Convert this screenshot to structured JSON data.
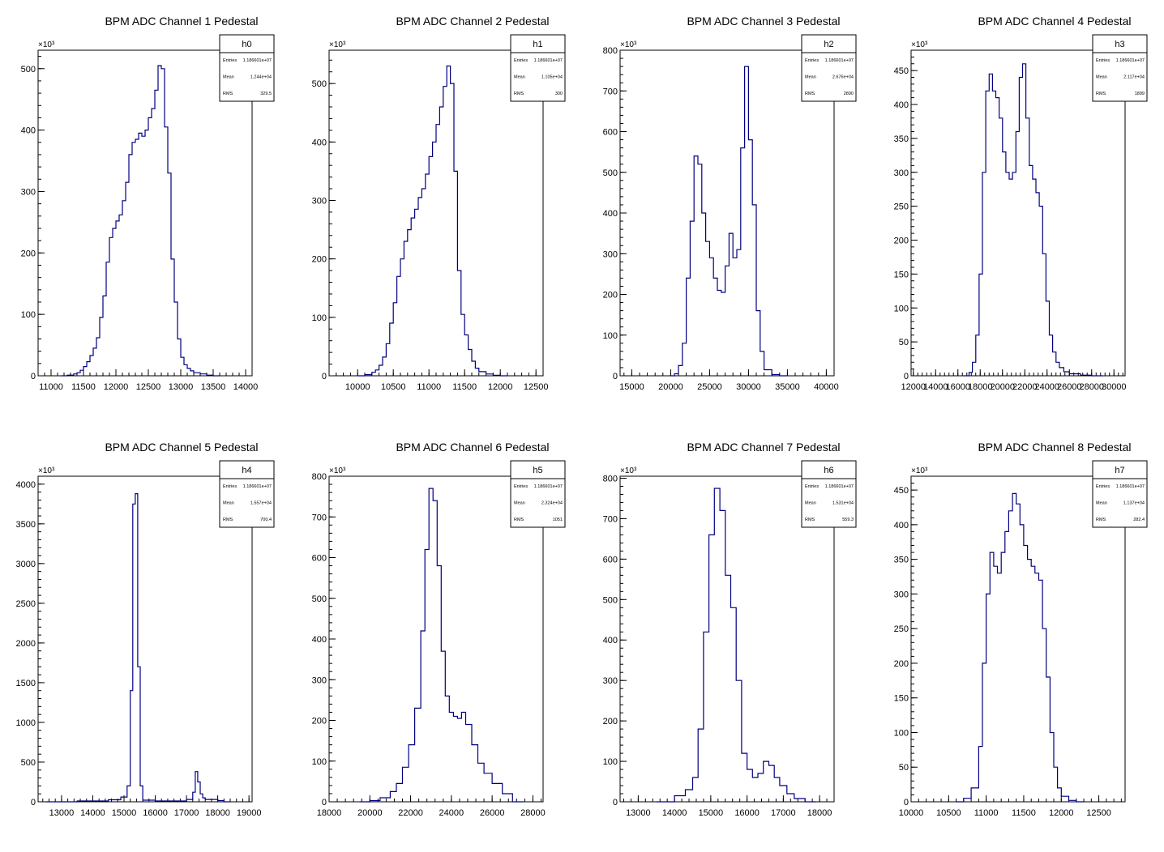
{
  "chart_data": [
    {
      "type": "histogram",
      "title": "BPM ADC Channel 1 Pedestal",
      "exponent_label": "×10³",
      "stats": {
        "name": "h0",
        "entries_label": "Entries",
        "entries": "1.186601e+07",
        "mean_label": "Mean",
        "mean": "1.244e+04",
        "rms_label": "RMS",
        "rms": "329.5"
      },
      "xlim": [
        10800,
        14100
      ],
      "ylim": [
        0,
        530
      ],
      "xticks": [
        11000,
        11500,
        12000,
        12500,
        13000,
        13500,
        14000
      ],
      "xtick_labels": [
        "11000",
        "11500",
        "12000",
        "12500",
        "13000",
        "13500",
        "14000"
      ],
      "yticks": [
        0,
        100,
        200,
        300,
        400,
        500
      ],
      "ytick_labels": [
        "0",
        "100",
        "200",
        "300",
        "400",
        "500"
      ],
      "x": [
        11150,
        11250,
        11350,
        11400,
        11450,
        11500,
        11550,
        11600,
        11650,
        11700,
        11750,
        11800,
        11850,
        11900,
        11950,
        12000,
        12050,
        12100,
        12150,
        12200,
        12250,
        12300,
        12350,
        12400,
        12450,
        12500,
        12550,
        12600,
        12650,
        12700,
        12750,
        12800,
        12850,
        12900,
        12950,
        13000,
        13050,
        13100,
        13150,
        13200,
        13300,
        13400,
        13500
      ],
      "y": [
        0,
        1,
        3,
        5,
        9,
        15,
        23,
        33,
        45,
        62,
        95,
        130,
        185,
        225,
        240,
        252,
        262,
        285,
        315,
        360,
        380,
        385,
        395,
        390,
        400,
        420,
        435,
        465,
        505,
        500,
        405,
        330,
        190,
        120,
        60,
        30,
        18,
        12,
        8,
        5,
        3,
        1,
        0
      ]
    },
    {
      "type": "histogram",
      "title": "BPM ADC Channel 2 Pedestal",
      "exponent_label": "×10³",
      "stats": {
        "name": "h1",
        "entries_label": "Entries",
        "entries": "1.186601e+07",
        "mean_label": "Mean",
        "mean": "1.105e+04",
        "rms_label": "RMS",
        "rms": "300"
      },
      "xlim": [
        9600,
        12600
      ],
      "ylim": [
        0,
        557
      ],
      "xticks": [
        10000,
        10500,
        11000,
        11500,
        12000,
        12500
      ],
      "xtick_labels": [
        "10000",
        "10500",
        "11000",
        "11500",
        "12000",
        "12500"
      ],
      "yticks": [
        0,
        100,
        200,
        300,
        400,
        500
      ],
      "ytick_labels": [
        "0",
        "100",
        "200",
        "300",
        "400",
        "500"
      ],
      "x": [
        10000,
        10100,
        10200,
        10250,
        10300,
        10350,
        10400,
        10450,
        10500,
        10550,
        10600,
        10650,
        10700,
        10750,
        10800,
        10850,
        10900,
        10950,
        11000,
        11050,
        11100,
        11150,
        11200,
        11250,
        11300,
        11350,
        11400,
        11450,
        11500,
        11550,
        11600,
        11650,
        11700,
        11800,
        11900,
        12000
      ],
      "y": [
        0,
        2,
        6,
        10,
        18,
        32,
        55,
        90,
        125,
        170,
        200,
        230,
        250,
        270,
        285,
        305,
        320,
        345,
        375,
        400,
        430,
        460,
        495,
        530,
        500,
        350,
        180,
        105,
        70,
        45,
        25,
        13,
        7,
        3,
        1,
        0
      ]
    },
    {
      "type": "histogram",
      "title": "BPM ADC Channel 3 Pedestal",
      "exponent_label": "×10³",
      "stats": {
        "name": "h2",
        "entries_label": "Entries",
        "entries": "1.186601e+07",
        "mean_label": "Mean",
        "mean": "2.676e+04",
        "rms_label": "RMS",
        "rms": "2890"
      },
      "xlim": [
        13500,
        41000
      ],
      "ylim": [
        0,
        800
      ],
      "xticks": [
        15000,
        20000,
        25000,
        30000,
        35000,
        40000
      ],
      "xtick_labels": [
        "15000",
        "20000",
        "25000",
        "30000",
        "35000",
        "40000"
      ],
      "yticks": [
        0,
        100,
        200,
        300,
        400,
        500,
        600,
        700,
        800
      ],
      "ytick_labels": [
        "0",
        "100",
        "200",
        "300",
        "400",
        "500",
        "600",
        "700",
        "800"
      ],
      "x": [
        20000,
        20500,
        21000,
        21500,
        22000,
        22500,
        23000,
        23500,
        24000,
        24500,
        25000,
        25500,
        26000,
        26500,
        27000,
        27500,
        28000,
        28500,
        29000,
        29500,
        30000,
        30500,
        31000,
        31500,
        32000,
        33000,
        34000
      ],
      "y": [
        0,
        5,
        25,
        80,
        240,
        380,
        540,
        520,
        400,
        330,
        290,
        240,
        210,
        205,
        270,
        350,
        290,
        310,
        560,
        760,
        580,
        420,
        160,
        60,
        15,
        3,
        0
      ]
    },
    {
      "type": "histogram",
      "title": "BPM ADC Channel 4 Pedestal",
      "exponent_label": "×10³",
      "stats": {
        "name": "h3",
        "entries_label": "Entries",
        "entries": "1.186601e+07",
        "mean_label": "Mean",
        "mean": "2.117e+04",
        "rms_label": "RMS",
        "rms": "1899"
      },
      "xlim": [
        11800,
        31000
      ],
      "ylim": [
        0,
        480
      ],
      "xticks": [
        12000,
        14000,
        16000,
        18000,
        20000,
        22000,
        24000,
        26000,
        28000,
        30000
      ],
      "xtick_labels": [
        "12000",
        "14000",
        "16000",
        "18000",
        "20000",
        "22000",
        "24000",
        "26000",
        "28000",
        "30000"
      ],
      "yticks": [
        0,
        50,
        100,
        150,
        200,
        250,
        300,
        350,
        400,
        450
      ],
      "ytick_labels": [
        "0",
        "50",
        "100",
        "150",
        "200",
        "250",
        "300",
        "350",
        "400",
        "450"
      ],
      "x": [
        16500,
        17000,
        17300,
        17600,
        17900,
        18200,
        18500,
        18800,
        19100,
        19400,
        19700,
        20000,
        20300,
        20600,
        20900,
        21200,
        21500,
        21800,
        22100,
        22400,
        22700,
        23000,
        23300,
        23600,
        23900,
        24200,
        24500,
        24800,
        25100,
        25500,
        26000,
        27000,
        28000
      ],
      "y": [
        0,
        5,
        20,
        60,
        150,
        300,
        420,
        445,
        420,
        410,
        380,
        330,
        300,
        290,
        300,
        360,
        440,
        460,
        380,
        310,
        290,
        270,
        250,
        180,
        110,
        60,
        35,
        20,
        12,
        6,
        3,
        1,
        0
      ]
    },
    {
      "type": "histogram",
      "title": "BPM ADC Channel 5 Pedestal",
      "exponent_label": "×10³",
      "stats": {
        "name": "h4",
        "entries_label": "Entries",
        "entries": "1.186601e+07",
        "mean_label": "Mean",
        "mean": "1.557e+04",
        "rms_label": "RMS",
        "rms": "700.4"
      },
      "xlim": [
        12250,
        19100
      ],
      "ylim": [
        0,
        4100
      ],
      "xticks": [
        13000,
        14000,
        15000,
        16000,
        17000,
        18000,
        19000
      ],
      "xtick_labels": [
        "13000",
        "14000",
        "15000",
        "16000",
        "17000",
        "18000",
        "19000"
      ],
      "yticks": [
        0,
        500,
        1000,
        1500,
        2000,
        2500,
        3000,
        3500,
        4000
      ],
      "ytick_labels": [
        "0",
        "500",
        "1000",
        "1500",
        "2000",
        "2500",
        "3000",
        "3500",
        "4000"
      ],
      "x": [
        12500,
        13500,
        14500,
        14900,
        15100,
        15200,
        15280,
        15360,
        15440,
        15520,
        15600,
        16000,
        17000,
        17200,
        17280,
        17360,
        17440,
        17520,
        17600,
        18000,
        18200
      ],
      "y": [
        0,
        10,
        25,
        60,
        200,
        1400,
        3750,
        3880,
        1700,
        200,
        20,
        10,
        30,
        120,
        380,
        250,
        100,
        50,
        30,
        15,
        0
      ]
    },
    {
      "type": "histogram",
      "title": "BPM ADC Channel 6 Pedestal",
      "exponent_label": "×10³",
      "stats": {
        "name": "h5",
        "entries_label": "Entries",
        "entries": "1.186601e+07",
        "mean_label": "Mean",
        "mean": "2.324e+04",
        "rms_label": "RMS",
        "rms": "1051"
      },
      "xlim": [
        18000,
        28500
      ],
      "ylim": [
        0,
        800
      ],
      "xticks": [
        18000,
        20000,
        22000,
        24000,
        26000,
        28000
      ],
      "xtick_labels": [
        "18000",
        "20000",
        "22000",
        "24000",
        "26000",
        "28000"
      ],
      "yticks": [
        0,
        100,
        200,
        300,
        400,
        500,
        600,
        700,
        800
      ],
      "ytick_labels": [
        "0",
        "100",
        "200",
        "300",
        "400",
        "500",
        "600",
        "700",
        "800"
      ],
      "x": [
        19500,
        20000,
        20500,
        21000,
        21300,
        21600,
        21900,
        22200,
        22500,
        22700,
        22900,
        23100,
        23300,
        23500,
        23700,
        23900,
        24100,
        24300,
        24500,
        24700,
        25000,
        25300,
        25600,
        26000,
        26500,
        27000
      ],
      "y": [
        0,
        3,
        10,
        25,
        45,
        85,
        140,
        230,
        420,
        620,
        770,
        740,
        580,
        370,
        260,
        220,
        210,
        205,
        220,
        190,
        140,
        95,
        70,
        45,
        20,
        0
      ]
    },
    {
      "type": "histogram",
      "title": "BPM ADC Channel 7 Pedestal",
      "exponent_label": "×10³",
      "stats": {
        "name": "h6",
        "entries_label": "Entries",
        "entries": "1.186601e+07",
        "mean_label": "Mean",
        "mean": "1.531e+04",
        "rms_label": "RMS",
        "rms": "559.3"
      },
      "xlim": [
        12500,
        18400
      ],
      "ylim": [
        0,
        805
      ],
      "xticks": [
        13000,
        14000,
        15000,
        16000,
        17000,
        18000
      ],
      "xtick_labels": [
        "13000",
        "14000",
        "15000",
        "16000",
        "17000",
        "18000"
      ],
      "yticks": [
        0,
        100,
        200,
        300,
        400,
        500,
        600,
        700,
        800
      ],
      "ytick_labels": [
        "0",
        "100",
        "200",
        "300",
        "400",
        "500",
        "600",
        "700",
        "800"
      ],
      "x": [
        13500,
        14000,
        14300,
        14500,
        14650,
        14800,
        14950,
        15100,
        15250,
        15400,
        15550,
        15700,
        15850,
        16000,
        16150,
        16300,
        16450,
        16600,
        16750,
        16900,
        17100,
        17300,
        17600
      ],
      "y": [
        0,
        15,
        30,
        60,
        180,
        420,
        660,
        775,
        720,
        560,
        480,
        300,
        120,
        80,
        60,
        70,
        100,
        90,
        60,
        40,
        20,
        8,
        0
      ]
    },
    {
      "type": "histogram",
      "title": "BPM ADC Channel 8 Pedestal",
      "exponent_label": "×10³",
      "stats": {
        "name": "h7",
        "entries_label": "Entries",
        "entries": "1.186601e+07",
        "mean_label": "Mean",
        "mean": "1.137e+04",
        "rms_label": "RMS",
        "rms": "282.4"
      },
      "xlim": [
        10000,
        12850
      ],
      "ylim": [
        0,
        470
      ],
      "xticks": [
        10000,
        10500,
        11000,
        11500,
        12000,
        12500
      ],
      "xtick_labels": [
        "10000",
        "10500",
        "11000",
        "11500",
        "12000",
        "12500"
      ],
      "yticks": [
        0,
        50,
        100,
        150,
        200,
        250,
        300,
        350,
        400,
        450
      ],
      "ytick_labels": [
        "0",
        "50",
        "100",
        "150",
        "200",
        "250",
        "300",
        "350",
        "400",
        "450"
      ],
      "x": [
        10600,
        10700,
        10800,
        10900,
        10950,
        11000,
        11050,
        11100,
        11150,
        11200,
        11250,
        11300,
        11350,
        11400,
        11450,
        11500,
        11550,
        11600,
        11650,
        11700,
        11750,
        11800,
        11850,
        11900,
        11950,
        12000,
        12100,
        12200
      ],
      "y": [
        0,
        5,
        20,
        80,
        200,
        300,
        360,
        340,
        330,
        360,
        390,
        420,
        445,
        430,
        400,
        370,
        350,
        340,
        330,
        320,
        250,
        180,
        100,
        50,
        20,
        8,
        2,
        0
      ]
    }
  ]
}
